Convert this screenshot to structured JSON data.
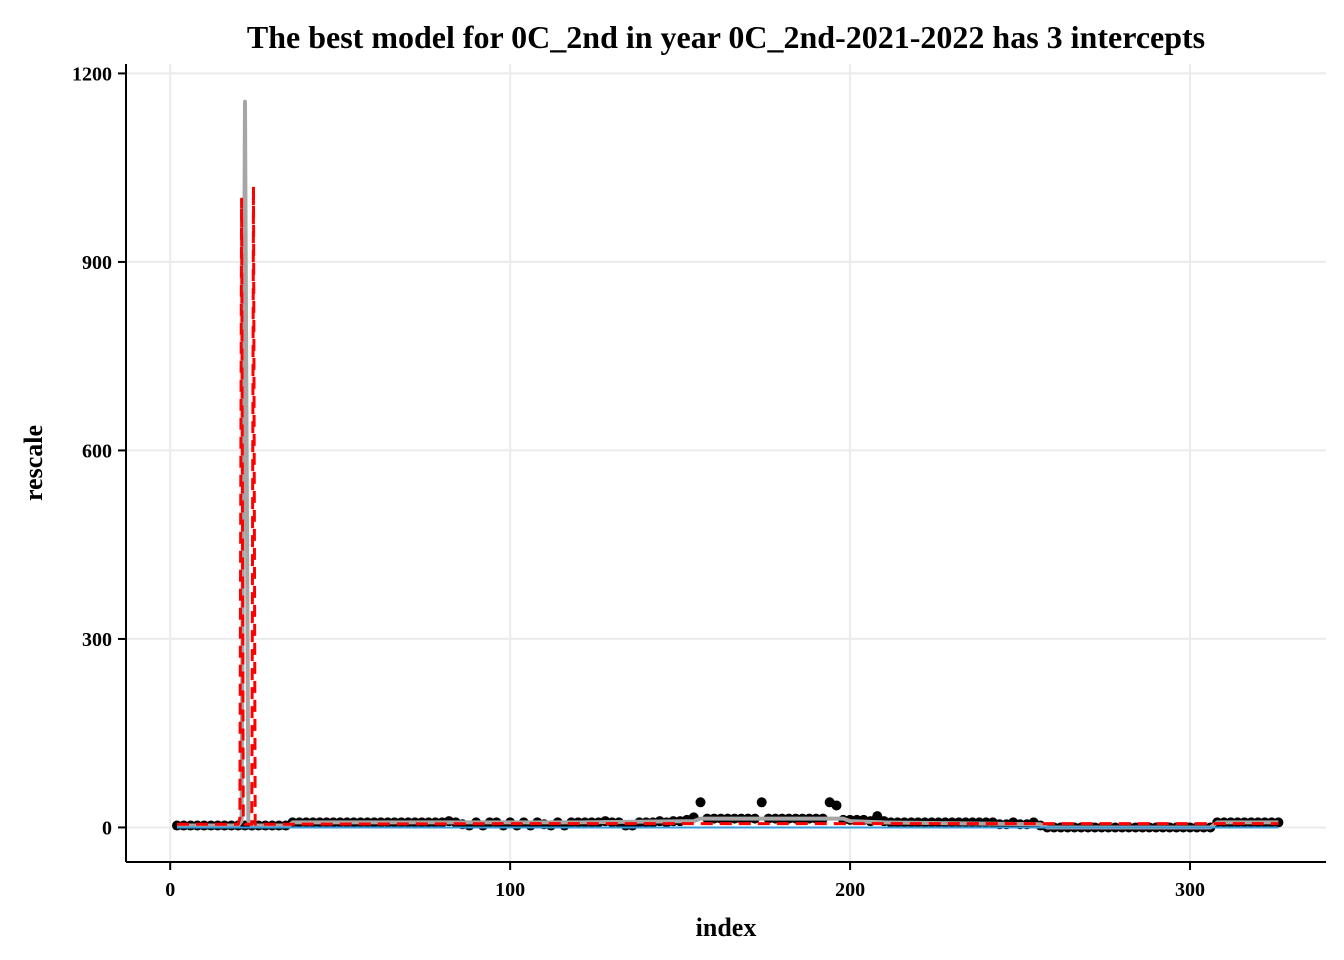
{
  "chart_data": {
    "type": "scatter",
    "title": "The best model for 0C_2nd in year 0C_2nd-2021-2022 has 3 intercepts",
    "xlabel": "index",
    "ylabel": "rescale",
    "xlim": [
      -13,
      340
    ],
    "ylim": [
      -55,
      1215
    ],
    "x_ticks": [
      0,
      100,
      200,
      300
    ],
    "y_ticks": [
      0,
      300,
      600,
      900,
      1200
    ],
    "x_tick_labels": [
      "0",
      "100",
      "200",
      "300"
    ],
    "y_tick_labels": [
      "0",
      "300",
      "600",
      "900",
      "1200"
    ],
    "grid": true,
    "colors": {
      "points": "#000000",
      "gray_line": "#a6a6a6",
      "red_dashed": "#ff0000",
      "blue_line": "#3a9ad9",
      "grid": "#ebebeb"
    },
    "series": [
      {
        "type": "scatter",
        "points": [
          [
            2,
            3
          ],
          [
            4,
            3
          ],
          [
            6,
            3
          ],
          [
            8,
            3
          ],
          [
            10,
            3
          ],
          [
            12,
            3
          ],
          [
            14,
            3
          ],
          [
            16,
            3
          ],
          [
            18,
            3
          ],
          [
            20,
            3
          ],
          [
            22,
            3
          ],
          [
            24,
            3
          ],
          [
            26,
            3
          ],
          [
            28,
            3
          ],
          [
            30,
            3
          ],
          [
            32,
            3
          ],
          [
            34,
            3
          ],
          [
            36,
            8
          ],
          [
            38,
            8
          ],
          [
            40,
            8
          ],
          [
            42,
            8
          ],
          [
            44,
            8
          ],
          [
            46,
            8
          ],
          [
            48,
            8
          ],
          [
            50,
            8
          ],
          [
            52,
            8
          ],
          [
            54,
            8
          ],
          [
            56,
            8
          ],
          [
            58,
            8
          ],
          [
            60,
            8
          ],
          [
            62,
            8
          ],
          [
            64,
            8
          ],
          [
            66,
            8
          ],
          [
            68,
            8
          ],
          [
            70,
            8
          ],
          [
            72,
            8
          ],
          [
            74,
            8
          ],
          [
            76,
            8
          ],
          [
            78,
            8
          ],
          [
            80,
            8
          ],
          [
            82,
            10
          ],
          [
            84,
            8
          ],
          [
            86,
            5
          ],
          [
            88,
            3
          ],
          [
            90,
            8
          ],
          [
            92,
            3
          ],
          [
            94,
            8
          ],
          [
            96,
            8
          ],
          [
            98,
            3
          ],
          [
            100,
            8
          ],
          [
            102,
            3
          ],
          [
            104,
            8
          ],
          [
            106,
            3
          ],
          [
            108,
            8
          ],
          [
            110,
            5
          ],
          [
            112,
            3
          ],
          [
            114,
            8
          ],
          [
            116,
            3
          ],
          [
            118,
            8
          ],
          [
            120,
            8
          ],
          [
            122,
            8
          ],
          [
            124,
            8
          ],
          [
            126,
            8
          ],
          [
            128,
            10
          ],
          [
            130,
            8
          ],
          [
            132,
            8
          ],
          [
            134,
            3
          ],
          [
            136,
            3
          ],
          [
            138,
            8
          ],
          [
            140,
            8
          ],
          [
            142,
            8
          ],
          [
            144,
            10
          ],
          [
            146,
            8
          ],
          [
            148,
            10
          ],
          [
            150,
            10
          ],
          [
            152,
            12
          ],
          [
            154,
            16
          ],
          [
            156,
            40
          ],
          [
            158,
            14
          ],
          [
            160,
            14
          ],
          [
            162,
            14
          ],
          [
            164,
            14
          ],
          [
            166,
            14
          ],
          [
            168,
            14
          ],
          [
            170,
            14
          ],
          [
            172,
            14
          ],
          [
            174,
            40
          ],
          [
            176,
            14
          ],
          [
            178,
            14
          ],
          [
            180,
            14
          ],
          [
            182,
            14
          ],
          [
            184,
            14
          ],
          [
            186,
            14
          ],
          [
            188,
            14
          ],
          [
            190,
            14
          ],
          [
            192,
            14
          ],
          [
            194,
            40
          ],
          [
            196,
            35
          ],
          [
            198,
            12
          ],
          [
            200,
            12
          ],
          [
            202,
            12
          ],
          [
            204,
            12
          ],
          [
            206,
            10
          ],
          [
            208,
            18
          ],
          [
            210,
            10
          ],
          [
            212,
            8
          ],
          [
            214,
            8
          ],
          [
            216,
            8
          ],
          [
            218,
            8
          ],
          [
            220,
            8
          ],
          [
            222,
            8
          ],
          [
            224,
            8
          ],
          [
            226,
            8
          ],
          [
            228,
            8
          ],
          [
            230,
            8
          ],
          [
            232,
            8
          ],
          [
            234,
            8
          ],
          [
            236,
            8
          ],
          [
            238,
            8
          ],
          [
            240,
            8
          ],
          [
            242,
            8
          ],
          [
            244,
            5
          ],
          [
            246,
            5
          ],
          [
            248,
            8
          ],
          [
            250,
            5
          ],
          [
            252,
            5
          ],
          [
            254,
            8
          ],
          [
            256,
            3
          ],
          [
            258,
            0
          ],
          [
            260,
            0
          ],
          [
            262,
            0
          ],
          [
            264,
            0
          ],
          [
            266,
            0
          ],
          [
            268,
            0
          ],
          [
            270,
            0
          ],
          [
            272,
            0
          ],
          [
            274,
            0
          ],
          [
            276,
            0
          ],
          [
            278,
            0
          ],
          [
            280,
            0
          ],
          [
            282,
            0
          ],
          [
            284,
            0
          ],
          [
            286,
            0
          ],
          [
            288,
            0
          ],
          [
            290,
            0
          ],
          [
            292,
            0
          ],
          [
            294,
            0
          ],
          [
            296,
            0
          ],
          [
            298,
            0
          ],
          [
            300,
            0
          ],
          [
            302,
            0
          ],
          [
            304,
            0
          ],
          [
            306,
            0
          ],
          [
            308,
            8
          ],
          [
            310,
            8
          ],
          [
            312,
            8
          ],
          [
            314,
            8
          ],
          [
            316,
            8
          ],
          [
            318,
            8
          ],
          [
            320,
            8
          ],
          [
            322,
            8
          ],
          [
            324,
            8
          ],
          [
            326,
            8
          ]
        ]
      },
      {
        "type": "line",
        "style": "solid",
        "points": [
          [
            2,
            3
          ],
          [
            20,
            3
          ],
          [
            21,
            10
          ],
          [
            22,
            1155
          ],
          [
            23,
            10
          ],
          [
            24,
            3
          ],
          [
            35,
            3
          ],
          [
            36,
            8
          ],
          [
            80,
            8
          ],
          [
            120,
            8
          ],
          [
            154,
            10
          ],
          [
            156,
            14
          ],
          [
            198,
            14
          ],
          [
            200,
            10
          ],
          [
            210,
            8
          ],
          [
            256,
            5
          ],
          [
            258,
            0
          ],
          [
            306,
            0
          ],
          [
            308,
            8
          ],
          [
            326,
            8
          ]
        ]
      },
      {
        "type": "line",
        "style": "dashed",
        "points": [
          [
            2,
            5
          ],
          [
            20,
            5
          ],
          [
            20.5,
            15
          ],
          [
            21,
            1000
          ],
          [
            21.5,
            15
          ],
          [
            22,
            5
          ],
          [
            24,
            5
          ],
          [
            24.5,
            1020
          ],
          [
            25,
            5
          ],
          [
            100,
            6
          ],
          [
            200,
            6
          ],
          [
            326,
            6
          ]
        ]
      },
      {
        "type": "line",
        "style": "solid",
        "points": [
          [
            2,
            0
          ],
          [
            326,
            0
          ]
        ]
      }
    ]
  }
}
